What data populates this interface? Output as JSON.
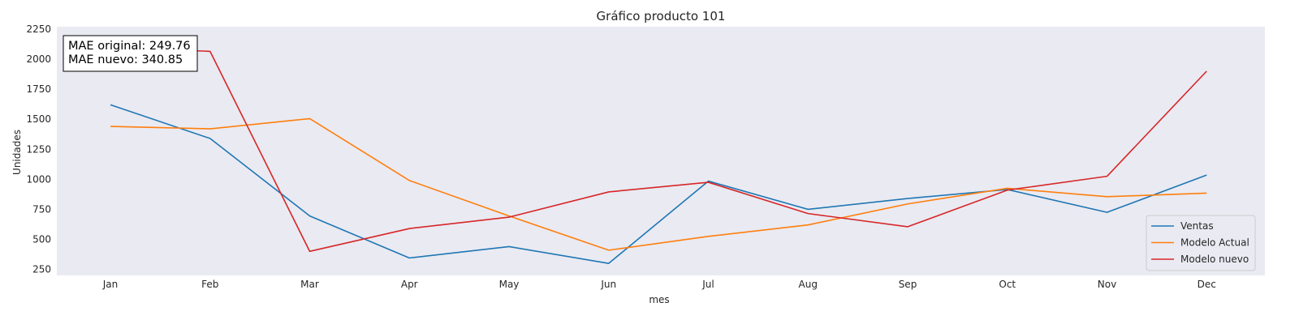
{
  "chart_data": {
    "type": "line",
    "title": "Gráfico producto 101",
    "xlabel": "mes",
    "ylabel": "Unidades",
    "categories": [
      "Jan",
      "Feb",
      "Mar",
      "Apr",
      "May",
      "Jun",
      "Jul",
      "Aug",
      "Sep",
      "Oct",
      "Nov",
      "Dec"
    ],
    "yticks": [
      250,
      500,
      750,
      1000,
      1250,
      1500,
      1750,
      2000,
      2250
    ],
    "ylim": [
      200,
      2270
    ],
    "grid": false,
    "legend_position": "lower-right",
    "series": [
      {
        "name": "Ventas",
        "color": "#1f77b4",
        "values": [
          1620,
          1340,
          695,
          345,
          440,
          300,
          985,
          750,
          840,
          915,
          725,
          1035
        ]
      },
      {
        "name": "Modelo Actual",
        "color": "#ff7f0e",
        "values": [
          1440,
          1420,
          1505,
          990,
          695,
          410,
          525,
          620,
          795,
          925,
          855,
          885
        ]
      },
      {
        "name": "Modelo nuevo",
        "color": "#d62728",
        "values": [
          2100,
          2065,
          400,
          590,
          685,
          895,
          975,
          715,
          605,
          910,
          1025,
          1900
        ]
      }
    ],
    "annotation": {
      "lines": [
        "MAE original: 249.76",
        "MAE nuevo: 340.85"
      ]
    }
  }
}
